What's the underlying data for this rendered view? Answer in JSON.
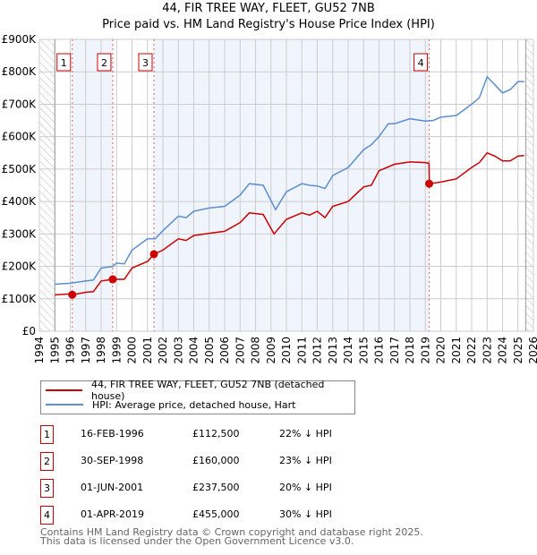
{
  "title": "44, FIR TREE WAY, FLEET, GU52 7NB",
  "subtitle": "Price paid vs. HM Land Registry's House Price Index (HPI)",
  "chart_data": {
    "type": "line",
    "title": "44, FIR TREE WAY, FLEET, GU52 7NB",
    "subtitle": "Price paid vs. HM Land Registry's House Price Index (HPI)",
    "xlim": [
      1994,
      2026
    ],
    "ylim": [
      0,
      900000
    ],
    "x_ticks": [
      "1994",
      "1995",
      "1996",
      "1997",
      "1998",
      "1999",
      "2000",
      "2001",
      "2002",
      "2003",
      "2004",
      "2005",
      "2006",
      "2007",
      "2008",
      "2009",
      "2010",
      "2011",
      "2012",
      "2013",
      "2014",
      "2015",
      "2016",
      "2017",
      "2018",
      "2019",
      "2020",
      "2021",
      "2022",
      "2023",
      "2024",
      "2025",
      "2026"
    ],
    "y_ticks": [
      {
        "v": 0,
        "label": "£0"
      },
      {
        "v": 100000,
        "label": "£100K"
      },
      {
        "v": 200000,
        "label": "£200K"
      },
      {
        "v": 300000,
        "label": "£300K"
      },
      {
        "v": 400000,
        "label": "£400K"
      },
      {
        "v": 500000,
        "label": "£500K"
      },
      {
        "v": 600000,
        "label": "£600K"
      },
      {
        "v": 700000,
        "label": "£700K"
      },
      {
        "v": 800000,
        "label": "£800K"
      },
      {
        "v": 900000,
        "label": "£900K"
      }
    ],
    "grid": true,
    "series": [
      {
        "name": "44, FIR TREE WAY, FLEET, GU52 7NB (detached house)",
        "color": "#cc0000",
        "x": [
          1995,
          1996,
          1996.13,
          1997,
          1997.5,
          1998,
          1998.75,
          1999.5,
          2000,
          2001,
          2001.42,
          2002,
          2003,
          2003.5,
          2004,
          2005,
          2006,
          2007,
          2007.6,
          2008.5,
          2009.2,
          2010,
          2011,
          2011.5,
          2012,
          2012.5,
          2013,
          2014,
          2015,
          2015.5,
          2016,
          2017,
          2018,
          2019,
          2019.24,
          2019.26,
          2020,
          2021,
          2022,
          2022.5,
          2023,
          2023.5,
          2024,
          2024.5,
          2025,
          2025.4
        ],
        "y": [
          112000,
          115000,
          112500,
          120000,
          122000,
          155000,
          160000,
          160000,
          195000,
          215000,
          237500,
          250000,
          285000,
          280000,
          295000,
          302000,
          308000,
          335000,
          365000,
          360000,
          300000,
          345000,
          365000,
          358000,
          370000,
          350000,
          385000,
          400000,
          445000,
          450000,
          495000,
          515000,
          522000,
          520000,
          518000,
          455000,
          460000,
          470000,
          505000,
          520000,
          550000,
          540000,
          525000,
          525000,
          540000,
          542000
        ]
      },
      {
        "name": "HPI: Average price, detached house, Hart",
        "color": "#5b8fd0",
        "x": [
          1995,
          1996,
          1997,
          1997.5,
          1998,
          1998.75,
          1999,
          1999.5,
          2000,
          2001,
          2001.5,
          2002,
          2003,
          2003.5,
          2004,
          2005,
          2006,
          2007,
          2007.6,
          2008.5,
          2009.3,
          2010,
          2011,
          2011.5,
          2012,
          2012.5,
          2013,
          2014,
          2015,
          2015.5,
          2016,
          2016.6,
          2017,
          2018,
          2019,
          2019.5,
          2020,
          2021,
          2022,
          2022.5,
          2023,
          2023.5,
          2024,
          2024.5,
          2025,
          2025.4
        ],
        "y": [
          145000,
          148000,
          155000,
          158000,
          195000,
          200000,
          210000,
          208000,
          250000,
          285000,
          285000,
          310000,
          355000,
          350000,
          370000,
          380000,
          385000,
          420000,
          455000,
          450000,
          375000,
          430000,
          455000,
          450000,
          448000,
          440000,
          480000,
          505000,
          560000,
          575000,
          600000,
          640000,
          640000,
          655000,
          648000,
          650000,
          660000,
          665000,
          700000,
          720000,
          785000,
          760000,
          735000,
          745000,
          770000,
          770000
        ]
      }
    ],
    "sales": [
      {
        "n": "1",
        "x": 1996.13,
        "y": 112500
      },
      {
        "n": "2",
        "x": 1998.75,
        "y": 160000
      },
      {
        "n": "3",
        "x": 2001.42,
        "y": 237500
      },
      {
        "n": "4",
        "x": 2019.25,
        "y": 455000
      }
    ],
    "shaded_ranges": [
      [
        1996.13,
        1998.75
      ],
      [
        2001.42,
        2019.25
      ]
    ],
    "hatched_ranges": [
      [
        1994,
        1995
      ],
      [
        2025.5,
        2026
      ]
    ],
    "legend_placement": "below"
  },
  "legend": [
    {
      "label": "44, FIR TREE WAY, FLEET, GU52 7NB (detached house)",
      "color": "#cc0000"
    },
    {
      "label": "HPI: Average price, detached house, Hart",
      "color": "#5b8fd0"
    }
  ],
  "table": [
    {
      "n": "1",
      "date": "16-FEB-1996",
      "price": "£112,500",
      "delta": "22% ↓ HPI"
    },
    {
      "n": "2",
      "date": "30-SEP-1998",
      "price": "£160,000",
      "delta": "23% ↓ HPI"
    },
    {
      "n": "3",
      "date": "01-JUN-2001",
      "price": "£237,500",
      "delta": "20% ↓ HPI"
    },
    {
      "n": "4",
      "date": "01-APR-2019",
      "price": "£455,000",
      "delta": "30% ↓ HPI"
    }
  ],
  "footer": [
    "Contains HM Land Registry data © Crown copyright and database right 2025.",
    "This data is licensed under the Open Government Licence v3.0."
  ]
}
